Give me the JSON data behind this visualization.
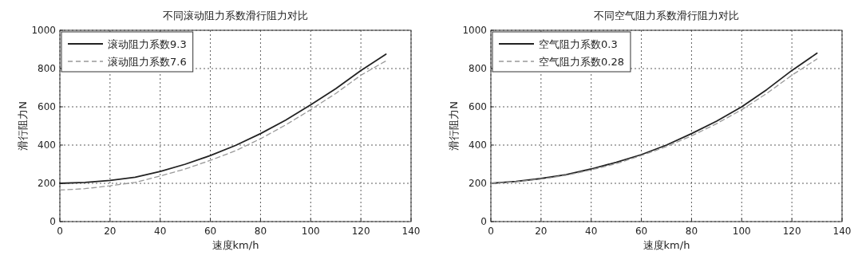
{
  "chart_data": [
    {
      "type": "line",
      "title": "不同滚动阻力系数滑行阻力对比",
      "xlabel": "速度km/h",
      "ylabel": "滑行阻力N",
      "x": [
        0,
        10,
        20,
        30,
        40,
        50,
        60,
        70,
        80,
        90,
        100,
        110,
        120,
        130
      ],
      "xlim": [
        0,
        140
      ],
      "ylim": [
        0,
        1000
      ],
      "xticks": [
        0,
        20,
        40,
        60,
        80,
        100,
        120,
        140
      ],
      "yticks": [
        0,
        200,
        400,
        600,
        800,
        1000
      ],
      "grid": true,
      "legend": "top left",
      "series": [
        {
          "name": "滚动阻力系数9.3",
          "color": "#222222",
          "line_style": "solid",
          "values": [
            200,
            205,
            215,
            232,
            262,
            300,
            345,
            398,
            460,
            530,
            610,
            695,
            790,
            875
          ]
        },
        {
          "name": "滚动阻力系数7.6",
          "color": "#999999",
          "line_style": "dashed",
          "values": [
            165,
            172,
            187,
            205,
            238,
            275,
            320,
            370,
            433,
            505,
            585,
            670,
            765,
            840
          ]
        }
      ]
    },
    {
      "type": "line",
      "title": "不同空气阻力系数滑行阻力对比",
      "xlabel": "速度km/h",
      "ylabel": "滑行阻力N",
      "x": [
        0,
        10,
        20,
        30,
        40,
        50,
        60,
        70,
        80,
        90,
        100,
        110,
        120,
        130
      ],
      "xlim": [
        0,
        140
      ],
      "ylim": [
        0,
        1000
      ],
      "xticks": [
        0,
        20,
        40,
        60,
        80,
        100,
        120,
        140
      ],
      "yticks": [
        0,
        200,
        400,
        600,
        800,
        1000
      ],
      "grid": true,
      "legend": "top left",
      "series": [
        {
          "name": "空气阻力系数0.3",
          "color": "#222222",
          "line_style": "solid",
          "values": [
            200,
            210,
            225,
            245,
            275,
            310,
            350,
            400,
            460,
            525,
            600,
            690,
            790,
            880
          ]
        },
        {
          "name": "空气阻力系数0.28",
          "color": "#999999",
          "line_style": "dashed",
          "values": [
            200,
            208,
            222,
            242,
            270,
            303,
            345,
            392,
            448,
            512,
            585,
            670,
            765,
            850
          ]
        }
      ]
    }
  ]
}
